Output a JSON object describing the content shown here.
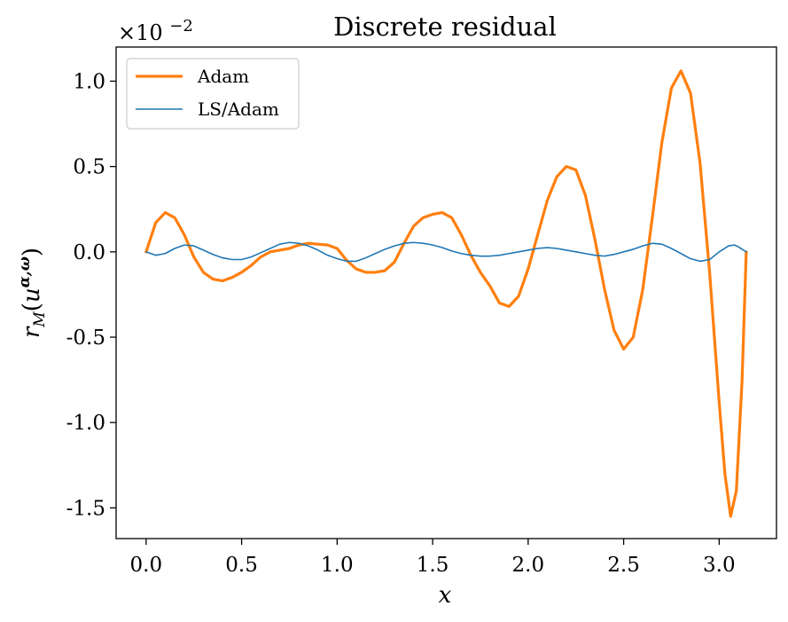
{
  "chart_data": {
    "type": "line",
    "title": "Discrete residual",
    "xlabel": "x",
    "ylabel": "r_M(u^{α,ω})",
    "ylabel_parts": {
      "base": "r",
      "sub": "M",
      "open": "(",
      "var": "u",
      "sup": "α,ω",
      "close": ")"
    },
    "y_multiplier": "×10",
    "y_multiplier_exp": "−2",
    "xlim": [
      -0.157,
      3.3
    ],
    "ylim": [
      -1.68,
      1.2
    ],
    "xticks": [
      0.0,
      0.5,
      1.0,
      1.5,
      2.0,
      2.5,
      3.0
    ],
    "xtick_labels": [
      "0.0",
      "0.5",
      "1.0",
      "1.5",
      "2.0",
      "2.5",
      "3.0"
    ],
    "yticks": [
      1.0,
      0.5,
      0.0,
      -0.5,
      -1.0,
      -1.5
    ],
    "ytick_labels": [
      "1.0",
      "0.5",
      "0.0",
      "-0.5",
      "-1.0",
      "-1.5"
    ],
    "grid": false,
    "legend_position": "top-left",
    "series": [
      {
        "name": "Adam",
        "color": "#ff7f0e",
        "line_width": 3.2,
        "points": [
          [
            0.0,
            0.0
          ],
          [
            0.05,
            0.17
          ],
          [
            0.1,
            0.23
          ],
          [
            0.15,
            0.2
          ],
          [
            0.2,
            0.1
          ],
          [
            0.25,
            -0.03
          ],
          [
            0.3,
            -0.12
          ],
          [
            0.35,
            -0.16
          ],
          [
            0.4,
            -0.17
          ],
          [
            0.45,
            -0.15
          ],
          [
            0.5,
            -0.12
          ],
          [
            0.55,
            -0.08
          ],
          [
            0.6,
            -0.03
          ],
          [
            0.65,
            0.0
          ],
          [
            0.7,
            0.01
          ],
          [
            0.75,
            0.02
          ],
          [
            0.8,
            0.04
          ],
          [
            0.85,
            0.05
          ],
          [
            0.9,
            0.045
          ],
          [
            0.95,
            0.04
          ],
          [
            1.0,
            0.02
          ],
          [
            1.05,
            -0.05
          ],
          [
            1.1,
            -0.1
          ],
          [
            1.15,
            -0.12
          ],
          [
            1.2,
            -0.12
          ],
          [
            1.25,
            -0.11
          ],
          [
            1.3,
            -0.06
          ],
          [
            1.35,
            0.05
          ],
          [
            1.4,
            0.15
          ],
          [
            1.45,
            0.2
          ],
          [
            1.5,
            0.22
          ],
          [
            1.55,
            0.23
          ],
          [
            1.6,
            0.2
          ],
          [
            1.65,
            0.1
          ],
          [
            1.7,
            -0.02
          ],
          [
            1.75,
            -0.12
          ],
          [
            1.8,
            -0.2
          ],
          [
            1.85,
            -0.3
          ],
          [
            1.9,
            -0.32
          ],
          [
            1.95,
            -0.26
          ],
          [
            2.0,
            -0.1
          ],
          [
            2.05,
            0.1
          ],
          [
            2.1,
            0.3
          ],
          [
            2.15,
            0.44
          ],
          [
            2.2,
            0.5
          ],
          [
            2.25,
            0.48
          ],
          [
            2.3,
            0.33
          ],
          [
            2.35,
            0.07
          ],
          [
            2.4,
            -0.22
          ],
          [
            2.45,
            -0.46
          ],
          [
            2.5,
            -0.57
          ],
          [
            2.55,
            -0.5
          ],
          [
            2.6,
            -0.22
          ],
          [
            2.65,
            0.2
          ],
          [
            2.7,
            0.64
          ],
          [
            2.75,
            0.96
          ],
          [
            2.8,
            1.06
          ],
          [
            2.85,
            0.93
          ],
          [
            2.9,
            0.52
          ],
          [
            2.95,
            -0.12
          ],
          [
            3.0,
            -0.88
          ],
          [
            3.03,
            -1.3
          ],
          [
            3.06,
            -1.55
          ],
          [
            3.09,
            -1.4
          ],
          [
            3.12,
            -0.75
          ],
          [
            3.1416,
            0.0
          ]
        ]
      },
      {
        "name": "LS/Adam",
        "color": "#1f77b4",
        "line_width": 1.6,
        "points": [
          [
            0.0,
            0.0
          ],
          [
            0.05,
            -0.02
          ],
          [
            0.1,
            -0.01
          ],
          [
            0.15,
            0.02
          ],
          [
            0.2,
            0.04
          ],
          [
            0.25,
            0.035
          ],
          [
            0.3,
            0.01
          ],
          [
            0.35,
            -0.015
          ],
          [
            0.4,
            -0.035
          ],
          [
            0.45,
            -0.045
          ],
          [
            0.5,
            -0.045
          ],
          [
            0.55,
            -0.03
          ],
          [
            0.6,
            -0.005
          ],
          [
            0.65,
            0.02
          ],
          [
            0.7,
            0.045
          ],
          [
            0.75,
            0.055
          ],
          [
            0.8,
            0.05
          ],
          [
            0.85,
            0.035
          ],
          [
            0.9,
            0.01
          ],
          [
            0.95,
            -0.02
          ],
          [
            1.0,
            -0.04
          ],
          [
            1.05,
            -0.055
          ],
          [
            1.1,
            -0.055
          ],
          [
            1.15,
            -0.035
          ],
          [
            1.2,
            -0.01
          ],
          [
            1.25,
            0.015
          ],
          [
            1.3,
            0.035
          ],
          [
            1.35,
            0.05
          ],
          [
            1.4,
            0.055
          ],
          [
            1.45,
            0.05
          ],
          [
            1.5,
            0.04
          ],
          [
            1.55,
            0.025
          ],
          [
            1.6,
            0.005
          ],
          [
            1.65,
            -0.01
          ],
          [
            1.7,
            -0.02
          ],
          [
            1.75,
            -0.025
          ],
          [
            1.8,
            -0.025
          ],
          [
            1.85,
            -0.02
          ],
          [
            1.9,
            -0.01
          ],
          [
            1.95,
            0.0
          ],
          [
            2.0,
            0.01
          ],
          [
            2.05,
            0.02
          ],
          [
            2.1,
            0.025
          ],
          [
            2.15,
            0.02
          ],
          [
            2.2,
            0.01
          ],
          [
            2.25,
            0.0
          ],
          [
            2.3,
            -0.01
          ],
          [
            2.35,
            -0.02
          ],
          [
            2.4,
            -0.025
          ],
          [
            2.45,
            -0.015
          ],
          [
            2.5,
            0.0
          ],
          [
            2.55,
            0.015
          ],
          [
            2.6,
            0.035
          ],
          [
            2.65,
            0.05
          ],
          [
            2.7,
            0.045
          ],
          [
            2.75,
            0.02
          ],
          [
            2.8,
            -0.01
          ],
          [
            2.85,
            -0.04
          ],
          [
            2.9,
            -0.055
          ],
          [
            2.95,
            -0.045
          ],
          [
            3.0,
            0.0
          ],
          [
            3.05,
            0.035
          ],
          [
            3.08,
            0.04
          ],
          [
            3.1,
            0.03
          ],
          [
            3.12,
            0.015
          ],
          [
            3.1416,
            0.0
          ]
        ]
      }
    ]
  }
}
